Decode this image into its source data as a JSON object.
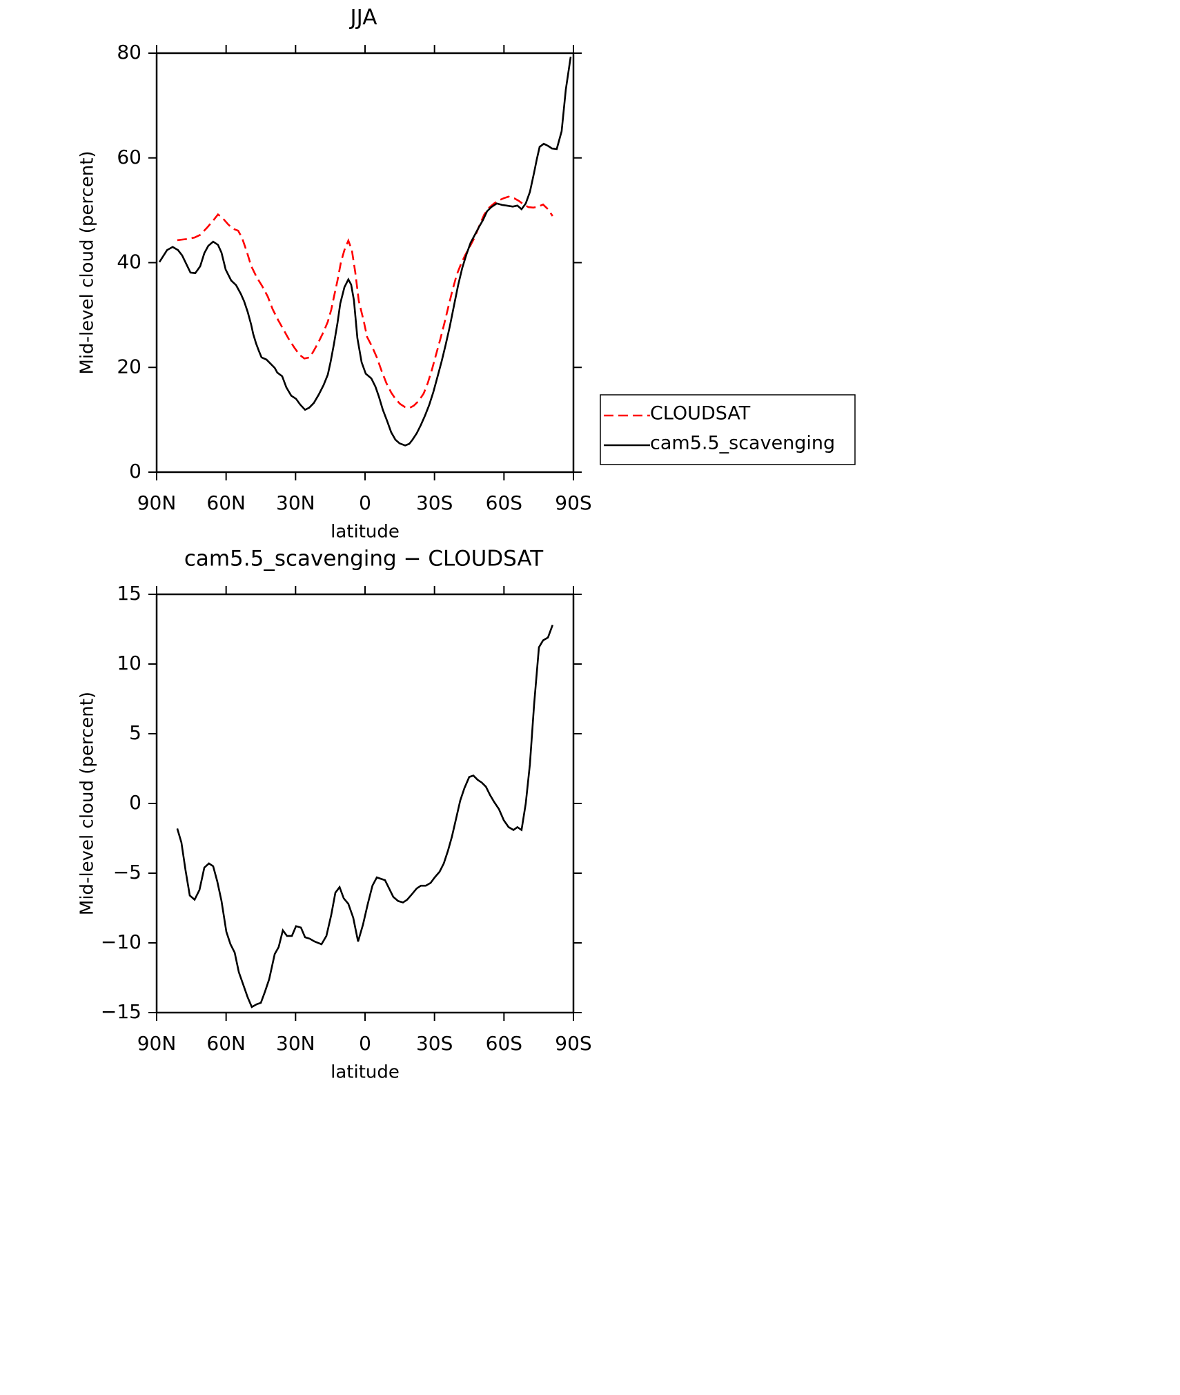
{
  "chart_data": [
    {
      "type": "line",
      "title": "JJA",
      "xlabel": "latitude",
      "ylabel": "Mid-level cloud (percent)",
      "xlim": [
        90,
        -90
      ],
      "xticks": [
        {
          "value": 90,
          "label": "90N"
        },
        {
          "value": 60,
          "label": "60N"
        },
        {
          "value": 30,
          "label": "30N"
        },
        0,
        {
          "value": -30,
          "label": "30S"
        },
        {
          "value": -60,
          "label": "60S"
        },
        {
          "value": -90,
          "label": "90S"
        }
      ],
      "ylim": [
        0,
        80
      ],
      "yticks": [
        0,
        20,
        40,
        60,
        80
      ],
      "legend": "outside-right",
      "series": [
        {
          "name": "CLOUDSAT",
          "color": "#ff0000",
          "dash": true,
          "x": [
            81.1,
            77.2,
            73.6,
            71.2,
            68.2,
            65.3,
            63.5,
            61.7,
            59.3,
            57.2,
            54.8,
            53.1,
            51.0,
            49.2,
            46.8,
            44.4,
            42.0,
            39.9,
            37.6,
            35.2,
            32.8,
            30.4,
            28.3,
            26.2,
            23.9,
            22.1,
            20.0,
            17.9,
            16.1,
            14.6,
            13.4,
            11.9,
            10.4,
            8.9,
            7.2,
            5.7,
            4.2,
            2.7,
            0.6,
            -0.9,
            -3.0,
            -5.1,
            -7.1,
            -9.2,
            -11.3,
            -13.1,
            -15.2,
            -17.3,
            -19.4,
            -21.1,
            -23.2,
            -25.3,
            -27.1,
            -28.9,
            -30.7,
            -32.5,
            -34.3,
            -36.0,
            -37.8,
            -39.6,
            -41.4,
            -43.2,
            -45.3,
            -47.4,
            -49.4,
            -51.5,
            -53.6,
            -55.7,
            -57.8,
            -59.9,
            -62.0,
            -64.4,
            -66.4,
            -68.5,
            -70.6,
            -72.7,
            -74.8,
            -76.9,
            -79.0,
            -81.0
          ],
          "values": [
            44.3,
            44.5,
            44.8,
            45.3,
            46.7,
            48.2,
            49.2,
            48.6,
            47.4,
            46.5,
            46.1,
            44.7,
            42.0,
            39.4,
            37.2,
            35.5,
            33.5,
            31.1,
            29.1,
            27.2,
            25.3,
            23.7,
            22.4,
            21.7,
            21.9,
            23.2,
            24.9,
            26.8,
            28.7,
            31.0,
            33.5,
            36.6,
            40.1,
            42.4,
            44.2,
            42.4,
            38.1,
            32.7,
            28.9,
            25.8,
            24.0,
            21.9,
            19.4,
            17.0,
            15.2,
            14.0,
            13.0,
            12.4,
            12.3,
            12.7,
            13.6,
            15.0,
            17.0,
            19.6,
            22.5,
            25.4,
            28.5,
            31.6,
            34.8,
            37.7,
            39.7,
            41.4,
            43.1,
            44.9,
            47.1,
            49.2,
            50.5,
            51.3,
            51.9,
            52.3,
            52.6,
            52.3,
            51.8,
            51.1,
            50.6,
            50.5,
            50.7,
            51.1,
            50.2,
            48.9
          ]
        },
        {
          "name": "cam5.5_scavenging",
          "color": "#000000",
          "dash": false,
          "x": [
            88.8,
            85.5,
            83.1,
            80.8,
            79.0,
            75.4,
            73.3,
            71.2,
            69.4,
            67.7,
            65.6,
            63.5,
            62.0,
            60.2,
            57.8,
            55.7,
            53.6,
            52.2,
            50.7,
            49.2,
            48.3,
            47.1,
            45.9,
            44.7,
            42.6,
            40.8,
            39.0,
            37.9,
            35.8,
            34.0,
            31.9,
            29.8,
            28.0,
            25.9,
            24.1,
            22.1,
            20.0,
            17.9,
            16.1,
            14.9,
            13.4,
            11.9,
            10.7,
            8.9,
            7.2,
            6.0,
            4.8,
            3.3,
            1.5,
            -0.3,
            -2.7,
            -4.5,
            -6.0,
            -7.7,
            -9.5,
            -11.3,
            -13.1,
            -14.9,
            -17.3,
            -19.1,
            -20.5,
            -22.3,
            -24.1,
            -25.9,
            -27.7,
            -29.5,
            -31.3,
            -33.1,
            -34.8,
            -36.6,
            -38.4,
            -40.2,
            -42.0,
            -43.8,
            -45.6,
            -47.4,
            -49.2,
            -50.9,
            -52.7,
            -54.5,
            -56.9,
            -59.3,
            -61.1,
            -63.8,
            -65.8,
            -67.6,
            -69.4,
            -71.2,
            -73.0,
            -74.2,
            -75.4,
            -77.2,
            -79.0,
            -80.7,
            -82.8,
            -84.9,
            -86.7,
            -88.8
          ],
          "values": [
            40.1,
            42.4,
            43.0,
            42.4,
            41.4,
            38.1,
            38.0,
            39.3,
            41.8,
            43.2,
            44.0,
            43.4,
            41.9,
            38.7,
            36.6,
            35.7,
            34.0,
            32.6,
            30.6,
            28.2,
            26.4,
            24.6,
            23.2,
            21.9,
            21.5,
            20.7,
            19.9,
            19.0,
            18.3,
            16.2,
            14.6,
            14.0,
            12.9,
            11.9,
            12.3,
            13.2,
            14.8,
            16.6,
            18.6,
            21.0,
            24.5,
            28.5,
            32.2,
            35.3,
            36.8,
            35.8,
            32.8,
            25.6,
            21.0,
            18.8,
            17.9,
            16.3,
            14.4,
            11.9,
            9.8,
            7.6,
            6.2,
            5.5,
            5.1,
            5.4,
            6.2,
            7.4,
            9.0,
            10.8,
            12.8,
            15.3,
            18.2,
            21.2,
            24.3,
            27.8,
            31.8,
            35.7,
            39.0,
            41.6,
            43.8,
            45.3,
            46.8,
            48.1,
            49.8,
            50.6,
            51.3,
            51.0,
            50.9,
            50.7,
            50.9,
            50.2,
            51.3,
            53.5,
            57.2,
            59.8,
            62.1,
            62.7,
            62.3,
            61.8,
            61.7,
            65.1,
            73.0,
            79.3
          ]
        }
      ]
    },
    {
      "type": "line",
      "title": "cam5.5_scavenging − CLOUDSAT",
      "xlabel": "latitude",
      "ylabel": "Mid-level cloud (percent)",
      "xlim": [
        90,
        -90
      ],
      "xticks": [
        {
          "value": 90,
          "label": "90N"
        },
        {
          "value": 60,
          "label": "60N"
        },
        {
          "value": 30,
          "label": "30N"
        },
        0,
        {
          "value": -30,
          "label": "30S"
        },
        {
          "value": -60,
          "label": "60S"
        },
        {
          "value": -90,
          "label": "90S"
        }
      ],
      "ylim": [
        -15,
        15
      ],
      "yticks": [
        {
          "value": -15,
          "label": "−15"
        },
        {
          "value": -10,
          "label": "−10"
        },
        {
          "value": -5,
          "label": "−5"
        },
        0,
        5,
        10,
        15
      ],
      "series": [
        {
          "color": "#000000",
          "dash": false,
          "x": [
            81.1,
            79.3,
            77.5,
            75.7,
            73.6,
            71.5,
            69.4,
            67.4,
            65.6,
            63.8,
            62.0,
            59.9,
            58.1,
            56.3,
            54.5,
            52.8,
            50.7,
            48.9,
            46.8,
            45.0,
            43.2,
            41.4,
            39.0,
            37.3,
            35.5,
            33.7,
            31.6,
            29.8,
            27.7,
            25.9,
            23.9,
            21.8,
            18.8,
            16.7,
            14.6,
            12.8,
            11.0,
            9.2,
            7.2,
            5.1,
            3.0,
            0.9,
            -1.2,
            -3.2,
            -5.1,
            -6.8,
            -8.6,
            -10.4,
            -12.2,
            -14.3,
            -16.4,
            -18.2,
            -20.3,
            -22.3,
            -24.1,
            -26.2,
            -28.3,
            -30.1,
            -32.2,
            -34.0,
            -35.8,
            -37.5,
            -39.3,
            -41.1,
            -42.9,
            -45.0,
            -46.8,
            -48.6,
            -50.4,
            -52.2,
            -54.0,
            -55.8,
            -57.8,
            -59.9,
            -62.0,
            -64.1,
            -65.8,
            -67.6,
            -69.4,
            -71.2,
            -73.0,
            -75.1,
            -76.9,
            -79.0,
            -81.0
          ],
          "values": [
            -1.8,
            -2.8,
            -4.8,
            -6.6,
            -6.9,
            -6.2,
            -4.6,
            -4.3,
            -4.5,
            -5.6,
            -7.0,
            -9.2,
            -10.1,
            -10.7,
            -12.1,
            -12.9,
            -13.9,
            -14.6,
            -14.4,
            -14.3,
            -13.5,
            -12.6,
            -10.8,
            -10.3,
            -9.1,
            -9.5,
            -9.5,
            -8.8,
            -8.9,
            -9.6,
            -9.7,
            -9.9,
            -10.1,
            -9.5,
            -8.0,
            -6.4,
            -6.0,
            -6.8,
            -7.2,
            -8.2,
            -9.9,
            -8.7,
            -7.2,
            -5.9,
            -5.3,
            -5.4,
            -5.5,
            -6.1,
            -6.7,
            -7.0,
            -7.1,
            -6.9,
            -6.5,
            -6.1,
            -5.9,
            -5.9,
            -5.7,
            -5.3,
            -4.9,
            -4.3,
            -3.4,
            -2.4,
            -1.1,
            0.2,
            1.1,
            1.9,
            2.0,
            1.7,
            1.5,
            1.2,
            0.6,
            0.1,
            -0.4,
            -1.2,
            -1.7,
            -1.9,
            -1.7,
            -1.9,
            0.0,
            2.8,
            7.1,
            11.2,
            11.7,
            11.9,
            12.8
          ]
        }
      ]
    }
  ]
}
